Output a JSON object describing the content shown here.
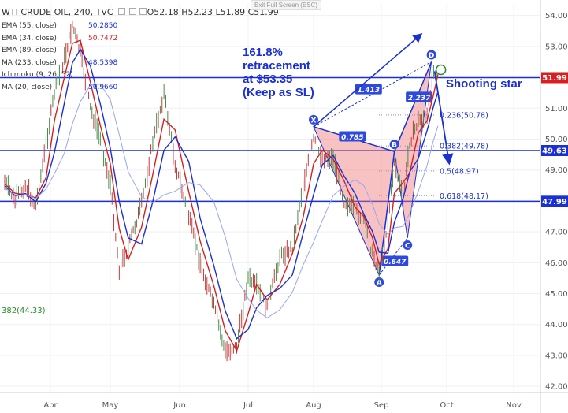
{
  "header": {
    "symbol": "WTI CRUDE OIL, 240, TVC",
    "open": "O52.18",
    "high": "H52.23",
    "low": "L51.89",
    "close": "C51.99",
    "exit_fullscreen": "Exit Full Screen (ESC)"
  },
  "indicators": [
    {
      "label": "EMA (55, close)",
      "value": "50.2850",
      "color": "#1a2fd4"
    },
    {
      "label": "EMA (34, close)",
      "value": "50.7472",
      "color": "#d81e1e"
    },
    {
      "label": "EMA (89, close)",
      "value": "",
      "color": "#9aa5f0"
    },
    {
      "label": "MA (233, close)",
      "value": "48.5398",
      "color": "#1a2fd4"
    },
    {
      "label": "Ichimoku (9, 26, 52)",
      "value": "",
      "color": "#1a2fd4"
    },
    {
      "label": "MA (20, close)",
      "value": "50.9660",
      "color": "#1a2fd4"
    }
  ],
  "annotations": {
    "retracement": [
      "161.8%",
      "retracement",
      "at $53.35",
      "(Keep as SL)"
    ],
    "shooting_star": "Shooting star",
    "left_fib": "382(44.33)"
  },
  "price_labels": [
    {
      "text": "51.99",
      "value": 51.99,
      "bg": "#d81e1e"
    },
    {
      "text": "49.63",
      "value": 49.63,
      "bg": "#1a2fd4"
    },
    {
      "text": "47.99",
      "value": 47.99,
      "bg": "#1a2fd4"
    }
  ],
  "chart_data": {
    "type": "line",
    "title": "WTI CRUDE OIL, 240, TVC",
    "x_ticks": [
      "Apr",
      "May",
      "Jun",
      "Jul",
      "Aug",
      "Sep",
      "Oct",
      "Nov"
    ],
    "y_ticks": [
      42.0,
      43.0,
      44.0,
      45.0,
      46.0,
      47.0,
      48.0,
      49.0,
      50.0,
      51.0,
      52.0,
      53.0,
      54.0
    ],
    "ylim": [
      41.8,
      54.4
    ],
    "horizontal_levels": [
      51.99,
      49.63,
      47.99
    ],
    "price_path": [
      {
        "x": "2017-03-01",
        "y": 48.6
      },
      {
        "x": "2017-03-08",
        "y": 48.0
      },
      {
        "x": "2017-03-15",
        "y": 48.5
      },
      {
        "x": "2017-03-22",
        "y": 47.8
      },
      {
        "x": "2017-03-29",
        "y": 49.8
      },
      {
        "x": "2017-04-03",
        "y": 51.5
      },
      {
        "x": "2017-04-08",
        "y": 52.6
      },
      {
        "x": "2017-04-12",
        "y": 53.7
      },
      {
        "x": "2017-04-16",
        "y": 52.8
      },
      {
        "x": "2017-04-21",
        "y": 51.0
      },
      {
        "x": "2017-04-26",
        "y": 50.0
      },
      {
        "x": "2017-05-01",
        "y": 48.5
      },
      {
        "x": "2017-05-05",
        "y": 45.8
      },
      {
        "x": "2017-05-09",
        "y": 46.5
      },
      {
        "x": "2017-05-15",
        "y": 47.9
      },
      {
        "x": "2017-05-20",
        "y": 49.9
      },
      {
        "x": "2017-05-25",
        "y": 51.5
      },
      {
        "x": "2017-05-30",
        "y": 49.2
      },
      {
        "x": "2017-06-05",
        "y": 47.5
      },
      {
        "x": "2017-06-10",
        "y": 46.0
      },
      {
        "x": "2017-06-16",
        "y": 44.6
      },
      {
        "x": "2017-06-21",
        "y": 43.1
      },
      {
        "x": "2017-06-26",
        "y": 43.3
      },
      {
        "x": "2017-07-01",
        "y": 45.5
      },
      {
        "x": "2017-07-05",
        "y": 45.2
      },
      {
        "x": "2017-07-10",
        "y": 44.5
      },
      {
        "x": "2017-07-16",
        "y": 46.2
      },
      {
        "x": "2017-07-22",
        "y": 46.5
      },
      {
        "x": "2017-07-27",
        "y": 48.5
      },
      {
        "x": "2017-08-01",
        "y": 50.0
      },
      {
        "x": "2017-08-05",
        "y": 49.4
      },
      {
        "x": "2017-08-10",
        "y": 49.4
      },
      {
        "x": "2017-08-15",
        "y": 48.0
      },
      {
        "x": "2017-08-20",
        "y": 47.7
      },
      {
        "x": "2017-08-24",
        "y": 47.4
      },
      {
        "x": "2017-08-28",
        "y": 46.3
      },
      {
        "x": "2017-08-31",
        "y": 45.7
      },
      {
        "x": "2017-09-04",
        "y": 47.3
      },
      {
        "x": "2017-09-07",
        "y": 49.3
      },
      {
        "x": "2017-09-11",
        "y": 48.0
      },
      {
        "x": "2017-09-14",
        "y": 49.9
      },
      {
        "x": "2017-09-18",
        "y": 50.6
      },
      {
        "x": "2017-09-22",
        "y": 50.7
      },
      {
        "x": "2017-09-25",
        "y": 52.3
      },
      {
        "x": "2017-09-27",
        "y": 51.99
      }
    ],
    "harmonic_points": [
      {
        "label": "X",
        "x": "2017-08-01",
        "y": 50.4
      },
      {
        "label": "A",
        "x": "2017-08-31",
        "y": 45.6
      },
      {
        "label": "B",
        "x": "2017-09-07",
        "y": 49.6
      },
      {
        "label": "C",
        "x": "2017-09-13",
        "y": 46.8
      },
      {
        "label": "D",
        "x": "2017-09-24",
        "y": 52.5
      }
    ],
    "ratios": [
      "1.413",
      "0.785",
      "2.237",
      "0.647"
    ],
    "fib_levels": [
      {
        "label": "0.236(50.78)",
        "value": 50.78
      },
      {
        "label": "0.382(49.78)",
        "value": 49.78
      },
      {
        "label": "0.5(48.97)",
        "value": 48.97
      },
      {
        "label": "0.618(48.17)",
        "value": 48.17
      }
    ]
  }
}
